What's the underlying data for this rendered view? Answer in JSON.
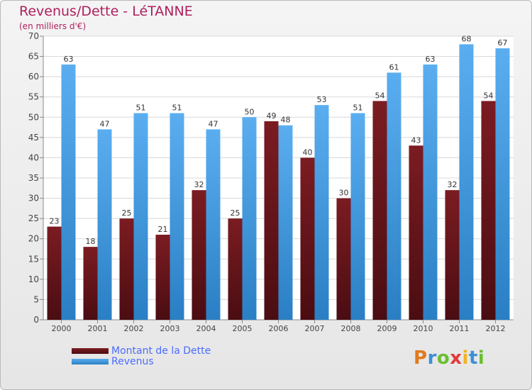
{
  "chart_data": {
    "type": "bar",
    "title": "Revenus/Dette - LéTANNE",
    "subtitle": "(en milliers d'€)",
    "categories": [
      "2000",
      "2001",
      "2002",
      "2003",
      "2004",
      "2005",
      "2006",
      "2007",
      "2008",
      "2009",
      "2010",
      "2011",
      "2012"
    ],
    "series": [
      {
        "name": "Montant de la Dette",
        "values": [
          23,
          18,
          25,
          21,
          32,
          25,
          49,
          40,
          30,
          54,
          43,
          32,
          54
        ],
        "color": "#7b1c22",
        "color_dark": "#4a0d12"
      },
      {
        "name": "Revenus",
        "values": [
          63,
          47,
          51,
          51,
          47,
          50,
          48,
          53,
          51,
          61,
          63,
          68,
          67
        ],
        "color": "#5aaef0",
        "color_dark": "#2a7fc4"
      }
    ],
    "yticks": [
      0,
      5,
      10,
      15,
      20,
      25,
      30,
      35,
      40,
      45,
      50,
      55,
      60,
      65,
      70
    ],
    "ylim": [
      0,
      70
    ],
    "grid": true,
    "legend": "bottom-left"
  },
  "logo": {
    "letters": [
      "P",
      "r",
      "o",
      "x",
      "i",
      "t",
      "i"
    ],
    "colors": [
      "#e07a1e",
      "#3b8fd6",
      "#6abf2e",
      "#e23a3a",
      "#f0b323",
      "#3b8fd6",
      "#6abf2e"
    ]
  }
}
